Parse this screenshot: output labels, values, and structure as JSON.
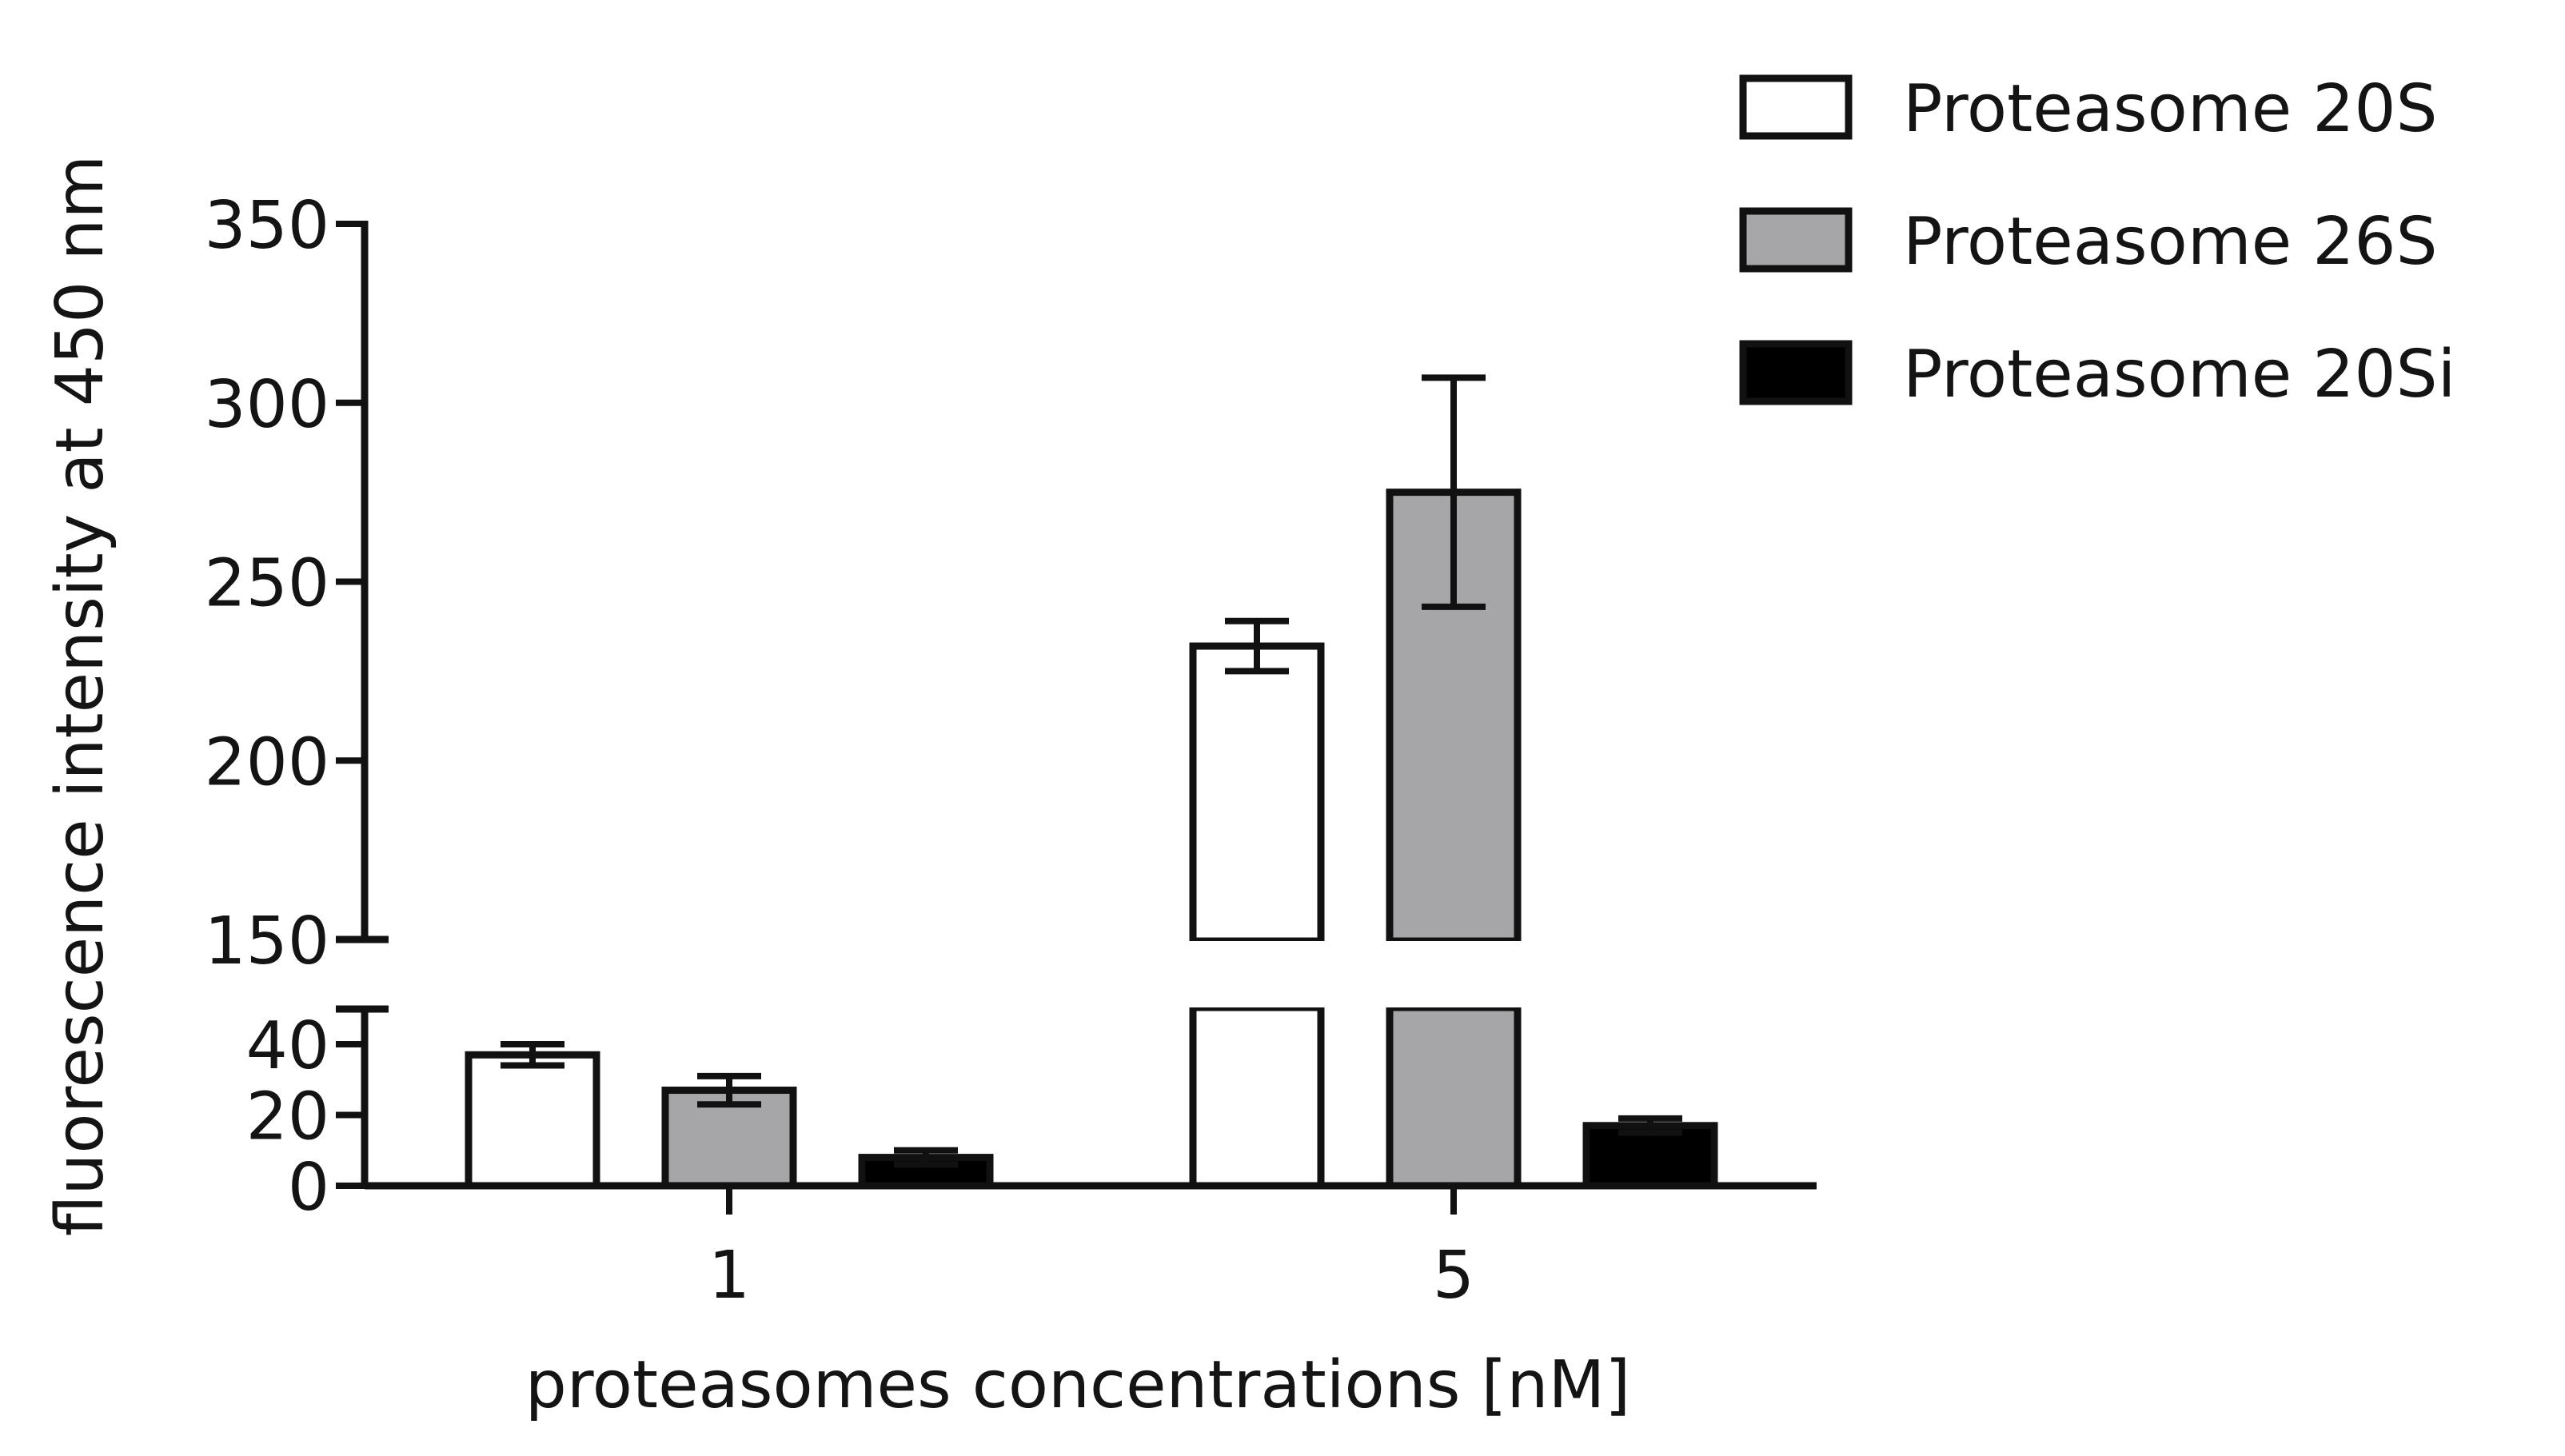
{
  "chart_data": {
    "type": "bar",
    "title": "",
    "xlabel": "proteasomes concentrations [nM]",
    "ylabel": "fluorescence intensity at 450 nm",
    "categories": [
      "1",
      "5"
    ],
    "series": [
      {
        "name": "Proteasome 20S",
        "values": [
          37,
          232
        ],
        "errors": [
          3,
          7
        ],
        "color": "#ffffff"
      },
      {
        "name": "Proteasome 26S",
        "values": [
          27,
          275
        ],
        "errors": [
          4,
          32
        ],
        "color": "#a6a6a8"
      },
      {
        "name": "Proteasome 20Si",
        "values": [
          8,
          17
        ],
        "errors": [
          2,
          2
        ],
        "color": "#000000"
      }
    ],
    "y_axis_break": {
      "lower_range": [
        0,
        45
      ],
      "upper_range": [
        150,
        350
      ]
    },
    "y_ticks_lower": [
      "0",
      "20",
      "40"
    ],
    "y_ticks_upper": [
      "150",
      "200",
      "250",
      "300",
      "350"
    ],
    "grid": false,
    "legend_position": "top-right",
    "error_bars": true
  }
}
